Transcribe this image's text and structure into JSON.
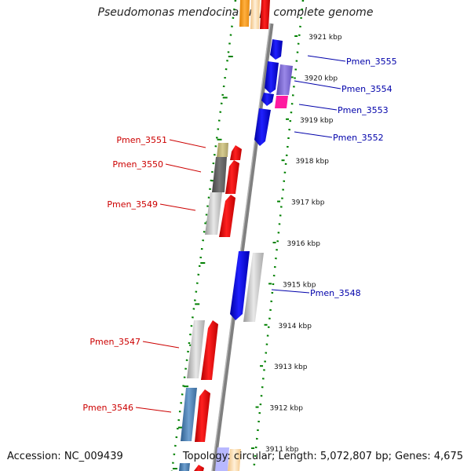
{
  "title": "Pseudomonas mendocina ymp, complete genome",
  "footer": {
    "accession": "Accession: NC_009439",
    "topology": "Topology: circular; Length: 5,072,807 bp; Genes: 4,675"
  },
  "colors": {
    "forward": "#ff0000",
    "reverse": "#0000ff",
    "label_forward": "#cc0000",
    "label_reverse": "#0000aa",
    "tick": "#008000",
    "backbone": "#808080"
  },
  "ticks": [
    {
      "label": "3921 kbp",
      "kb": 3921
    },
    {
      "label": "3920 kbp",
      "kb": 3920
    },
    {
      "label": "3919 kbp",
      "kb": 3919
    },
    {
      "label": "3918 kbp",
      "kb": 3918
    },
    {
      "label": "3917 kbp",
      "kb": 3917
    },
    {
      "label": "3916 kbp",
      "kb": 3916
    },
    {
      "label": "3915 kbp",
      "kb": 3915
    },
    {
      "label": "3914 kbp",
      "kb": 3914
    },
    {
      "label": "3913 kbp",
      "kb": 3913
    },
    {
      "label": "3912 kbp",
      "kb": 3912
    },
    {
      "label": "3911 kbp",
      "kb": 3911
    }
  ],
  "genes": [
    {
      "name": "Pmen_3555",
      "strand": "reverse"
    },
    {
      "name": "Pmen_3554",
      "strand": "reverse"
    },
    {
      "name": "Pmen_3553",
      "strand": "reverse"
    },
    {
      "name": "Pmen_3552",
      "strand": "reverse"
    },
    {
      "name": "Pmen_3551",
      "strand": "forward"
    },
    {
      "name": "Pmen_3550",
      "strand": "forward"
    },
    {
      "name": "Pmen_3549",
      "strand": "forward"
    },
    {
      "name": "Pmen_3548",
      "strand": "reverse"
    },
    {
      "name": "Pmen_3547",
      "strand": "forward"
    },
    {
      "name": "Pmen_3546",
      "strand": "forward"
    }
  ]
}
